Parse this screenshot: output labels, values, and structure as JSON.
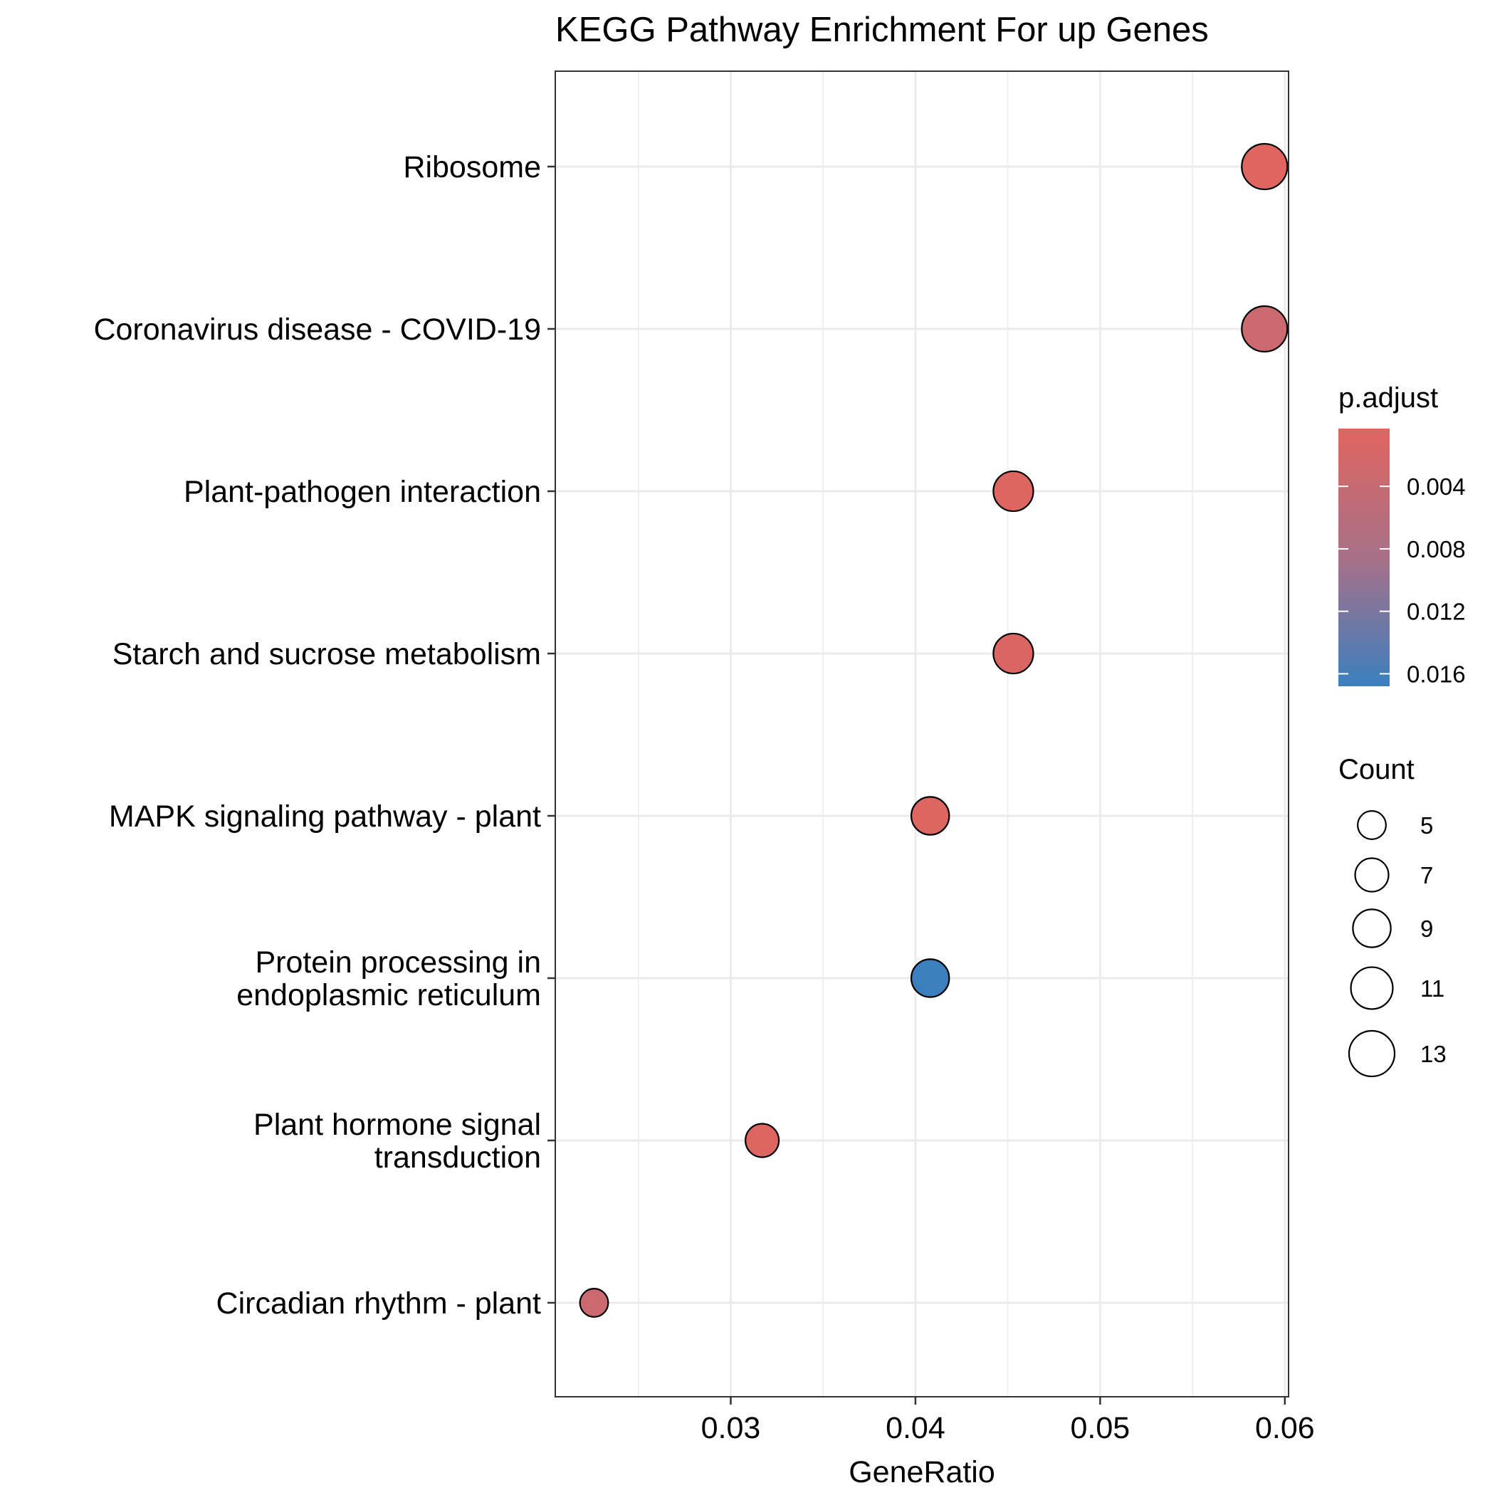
{
  "chart_data": {
    "type": "scatter",
    "title": "KEGG Pathway Enrichment For up Genes",
    "xlabel": "GeneRatio",
    "ylabel": "",
    "xlim": [
      0.0205,
      0.0602
    ],
    "x_ticks": [
      {
        "value": 0.03,
        "label": "0.03"
      },
      {
        "value": 0.04,
        "label": "0.04"
      },
      {
        "value": 0.05,
        "label": "0.05"
      },
      {
        "value": 0.06,
        "label": "0.06"
      }
    ],
    "x_minor_ticks": [
      0.025,
      0.035,
      0.045,
      0.055
    ],
    "grid": true,
    "points": [
      {
        "term": [
          "Ribosome"
        ],
        "gene_ratio": 0.0589,
        "count": 13,
        "p_adjust": 0.0005
      },
      {
        "term": [
          "Coronavirus disease - COVID-19"
        ],
        "gene_ratio": 0.0589,
        "count": 13,
        "p_adjust": 0.0035
      },
      {
        "term": [
          "Plant-pathogen interaction"
        ],
        "gene_ratio": 0.0453,
        "count": 10,
        "p_adjust": 0.0008
      },
      {
        "term": [
          "Starch and sucrose metabolism"
        ],
        "gene_ratio": 0.0453,
        "count": 10,
        "p_adjust": 0.0012
      },
      {
        "term": [
          "MAPK signaling pathway - plant"
        ],
        "gene_ratio": 0.0408,
        "count": 9,
        "p_adjust": 0.0008
      },
      {
        "term": [
          "Protein processing in",
          "endoplasmic reticulum"
        ],
        "gene_ratio": 0.0408,
        "count": 9,
        "p_adjust": 0.0168
      },
      {
        "term": [
          "Plant hormone signal",
          "transduction"
        ],
        "gene_ratio": 0.0317,
        "count": 7,
        "p_adjust": 0.0008
      },
      {
        "term": [
          "Circadian rhythm - plant"
        ],
        "gene_ratio": 0.0226,
        "count": 5,
        "p_adjust": 0.0035
      }
    ],
    "color_legend": {
      "title": "p.adjust",
      "range": [
        0.0003,
        0.0168
      ],
      "low_color": "#E06560",
      "mid_color": "#A87088",
      "high_color": "#3B7FBF",
      "ticks": [
        {
          "value": 0.004,
          "label": "0.004"
        },
        {
          "value": 0.008,
          "label": "0.008"
        },
        {
          "value": 0.012,
          "label": "0.012"
        },
        {
          "value": 0.016,
          "label": "0.016"
        }
      ]
    },
    "size_legend": {
      "title": "Count",
      "entries": [
        {
          "value": 5,
          "label": "5"
        },
        {
          "value": 7,
          "label": "7"
        },
        {
          "value": 9,
          "label": "9"
        },
        {
          "value": 11,
          "label": "11"
        },
        {
          "value": 13,
          "label": "13"
        }
      ]
    },
    "legend_position": "right"
  }
}
